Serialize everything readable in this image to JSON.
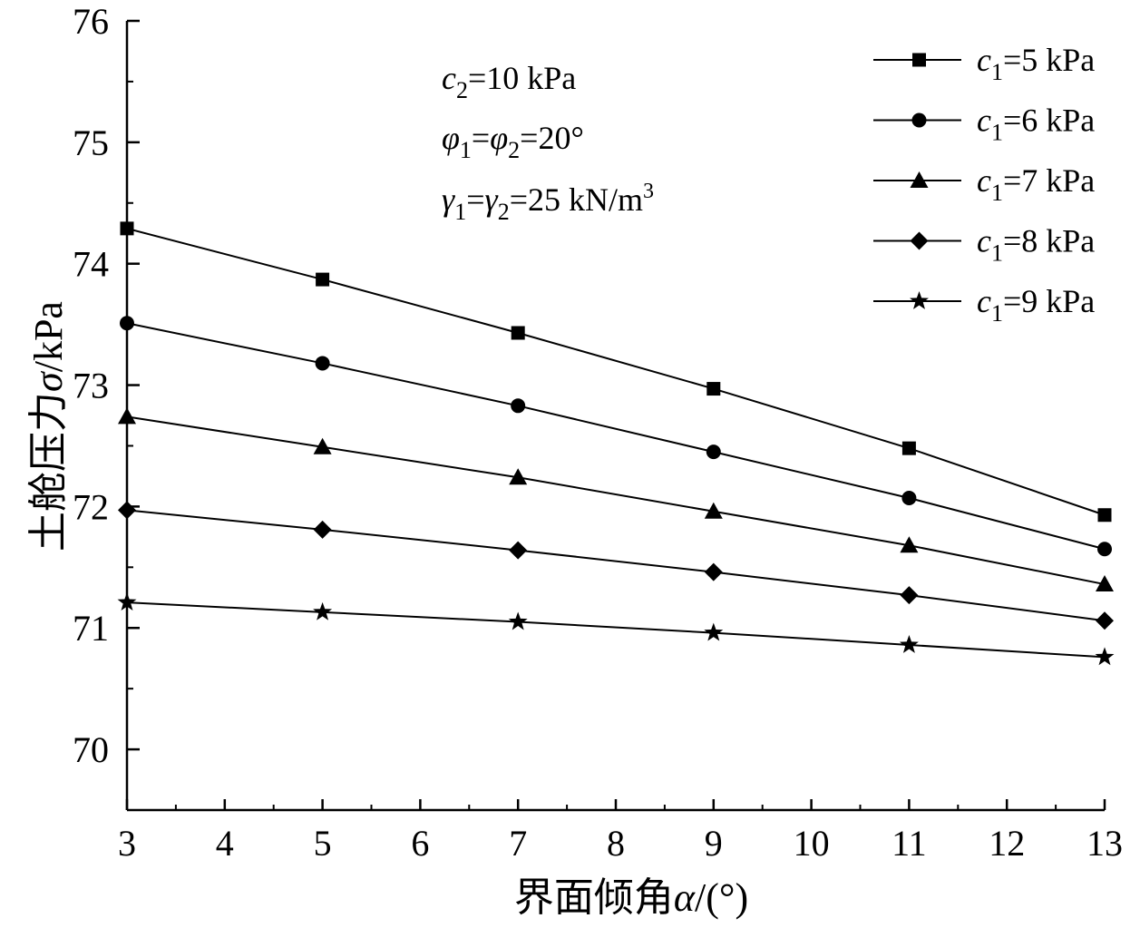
{
  "chart_data": {
    "type": "line",
    "xlabel": {
      "prefix": "界面倾角",
      "symbol": "α",
      "suffix": "/(°)"
    },
    "ylabel": {
      "prefix": "土舱压力",
      "symbol": "σ",
      "suffix": "/kPa"
    },
    "xlim": [
      3,
      13
    ],
    "ylim": [
      69.5,
      76
    ],
    "x_ticks": [
      3,
      4,
      5,
      6,
      7,
      8,
      9,
      10,
      11,
      12,
      13
    ],
    "y_ticks": [
      70,
      71,
      72,
      73,
      74,
      75,
      76
    ],
    "x": [
      3,
      5,
      7,
      9,
      11,
      13
    ],
    "legend_position": "top-right",
    "grid": false,
    "series": [
      {
        "name": "c1=5 kPa",
        "sym": "c",
        "sub": "1",
        "val": "=5 kPa",
        "marker": "square",
        "values": [
          74.29,
          73.87,
          73.43,
          72.97,
          72.48,
          71.93
        ]
      },
      {
        "name": "c1=6 kPa",
        "sym": "c",
        "sub": "1",
        "val": "=6 kPa",
        "marker": "circle",
        "values": [
          73.51,
          73.18,
          72.83,
          72.45,
          72.07,
          71.65
        ]
      },
      {
        "name": "c1=7 kPa",
        "sym": "c",
        "sub": "1",
        "val": "=7 kPa",
        "marker": "triangle",
        "values": [
          72.74,
          72.49,
          72.24,
          71.96,
          71.68,
          71.36
        ]
      },
      {
        "name": "c1=8 kPa",
        "sym": "c",
        "sub": "1",
        "val": "=8 kPa",
        "marker": "diamond",
        "values": [
          71.97,
          71.81,
          71.64,
          71.46,
          71.27,
          71.06
        ]
      },
      {
        "name": "c1=9 kPa",
        "sym": "c",
        "sub": "1",
        "val": "=9 kPa",
        "marker": "star",
        "values": [
          71.21,
          71.13,
          71.05,
          70.96,
          70.86,
          70.76
        ]
      }
    ],
    "annotations": [
      {
        "parts": [
          {
            "t": "c",
            "it": true
          },
          {
            "t": "2",
            "sub": true
          },
          {
            "t": "=10 kPa"
          }
        ]
      },
      {
        "parts": [
          {
            "t": "φ",
            "it": true
          },
          {
            "t": "1",
            "sub": true
          },
          {
            "t": "="
          },
          {
            "t": "φ",
            "it": true
          },
          {
            "t": "2",
            "sub": true
          },
          {
            "t": "=20°"
          }
        ]
      },
      {
        "parts": [
          {
            "t": "γ",
            "it": true
          },
          {
            "t": "1",
            "sub": true
          },
          {
            "t": "="
          },
          {
            "t": "γ",
            "it": true
          },
          {
            "t": "2",
            "sub": true
          },
          {
            "t": "=25 kN/m"
          },
          {
            "t": "3",
            "sup": true
          }
        ]
      }
    ]
  }
}
